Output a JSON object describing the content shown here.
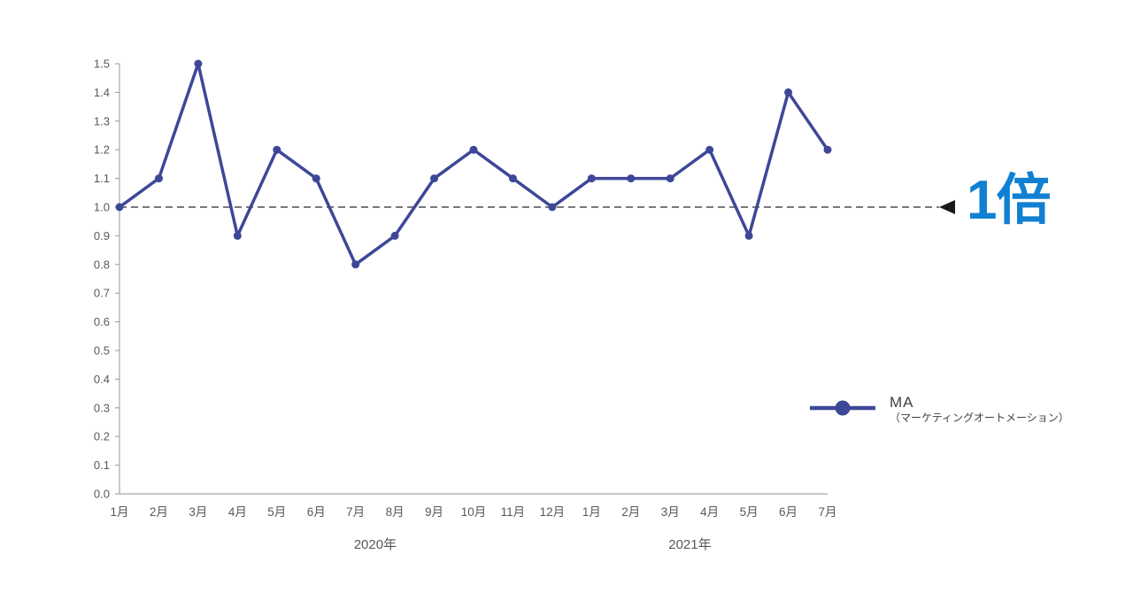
{
  "chart_data": {
    "type": "line",
    "title": "",
    "categories": [
      "1月",
      "2月",
      "3月",
      "4月",
      "5月",
      "6月",
      "7月",
      "8月",
      "9月",
      "10月",
      "11月",
      "12月",
      "1月",
      "2月",
      "3月",
      "4月",
      "5月",
      "6月",
      "7月"
    ],
    "year_groups": [
      {
        "label": "2020年",
        "start": 0,
        "end": 11
      },
      {
        "label": "2021年",
        "start": 12,
        "end": 18
      }
    ],
    "series": [
      {
        "name": "MA",
        "values": [
          1.0,
          1.1,
          1.5,
          0.9,
          1.2,
          1.1,
          0.8,
          0.9,
          1.1,
          1.2,
          1.1,
          1.0,
          1.1,
          1.1,
          1.1,
          1.2,
          0.9,
          1.4,
          1.2
        ]
      }
    ],
    "ylim": [
      0.0,
      1.5
    ],
    "ytick_step": 0.1,
    "grid": "off",
    "reference_line": {
      "value": 1.0,
      "label": "1倍",
      "style": "dashed",
      "arrow": "left-pointing-triangle"
    },
    "legend": {
      "name": "MA",
      "sub": "（マーケティングオートメーション）",
      "position": "right"
    },
    "colors": {
      "series": "#3E4797",
      "reference_label": "#1180D2",
      "reference_line": "#4D4D4D",
      "arrow": "#1A1A1A",
      "axis": "#A6A6A6",
      "tick_text": "#595959",
      "legend_text": "#404040"
    }
  }
}
